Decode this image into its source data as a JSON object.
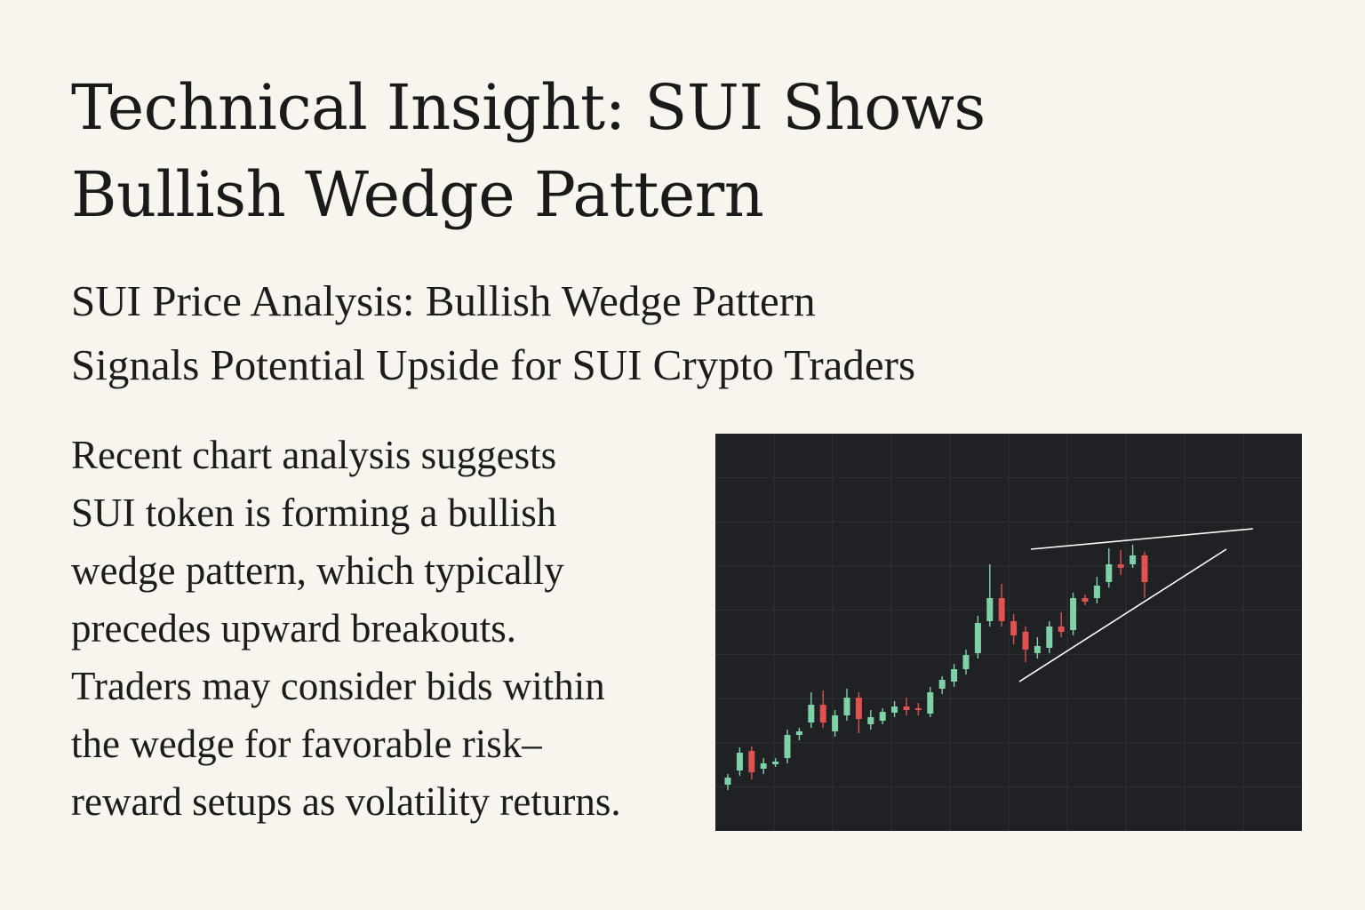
{
  "article": {
    "headline_lines": [
      "Technical Insight: SUI Shows",
      "Bullish Wedge Pattern"
    ],
    "subheadline_lines": [
      "SUI Price Analysis: Bullish Wedge Pattern",
      "Signals Potential Upside for SUI Crypto Traders"
    ],
    "body_lines": [
      "Recent chart analysis suggests",
      "SUI token is forming a bullish",
      "wedge pattern, which typically",
      "precedes upward breakouts.",
      "Traders may consider bids within",
      "the wedge for favorable risk–",
      "reward setups as volatility returns."
    ]
  },
  "colors": {
    "page_background": "#f8f4ee",
    "text": "#1c1c1c",
    "chart_background": "#1f2124",
    "grid": "#2f3236",
    "bullish": "#7fd1a8",
    "bearish": "#e0514f",
    "trendline": "#ffffff"
  },
  "chart_data": {
    "type": "candlestick",
    "grid": true,
    "ylim": [
      0,
      447
    ],
    "candles": [
      {
        "o": 52,
        "c": 60,
        "h": 64,
        "l": 46
      },
      {
        "o": 68,
        "c": 88,
        "h": 94,
        "l": 62
      },
      {
        "o": 90,
        "c": 66,
        "h": 95,
        "l": 58
      },
      {
        "o": 70,
        "c": 76,
        "h": 82,
        "l": 64
      },
      {
        "o": 75,
        "c": 78,
        "h": 82,
        "l": 72
      },
      {
        "o": 82,
        "c": 108,
        "h": 114,
        "l": 76
      },
      {
        "o": 108,
        "c": 112,
        "h": 116,
        "l": 102
      },
      {
        "o": 122,
        "c": 142,
        "h": 156,
        "l": 116
      },
      {
        "o": 142,
        "c": 122,
        "h": 158,
        "l": 116
      },
      {
        "o": 112,
        "c": 130,
        "h": 136,
        "l": 106
      },
      {
        "o": 130,
        "c": 150,
        "h": 160,
        "l": 124
      },
      {
        "o": 150,
        "c": 126,
        "h": 156,
        "l": 110
      },
      {
        "o": 120,
        "c": 128,
        "h": 136,
        "l": 114
      },
      {
        "o": 124,
        "c": 134,
        "h": 138,
        "l": 120
      },
      {
        "o": 133,
        "c": 140,
        "h": 146,
        "l": 128
      },
      {
        "o": 140,
        "c": 136,
        "h": 150,
        "l": 130
      },
      {
        "o": 138,
        "c": 136,
        "h": 144,
        "l": 130
      },
      {
        "o": 132,
        "c": 156,
        "h": 162,
        "l": 128
      },
      {
        "o": 160,
        "c": 170,
        "h": 174,
        "l": 154
      },
      {
        "o": 168,
        "c": 182,
        "h": 188,
        "l": 162
      },
      {
        "o": 182,
        "c": 198,
        "h": 204,
        "l": 176
      },
      {
        "o": 200,
        "c": 234,
        "h": 242,
        "l": 194
      },
      {
        "o": 236,
        "c": 262,
        "h": 300,
        "l": 230
      },
      {
        "o": 262,
        "c": 236,
        "h": 278,
        "l": 230
      },
      {
        "o": 236,
        "c": 220,
        "h": 244,
        "l": 210
      },
      {
        "o": 224,
        "c": 204,
        "h": 230,
        "l": 190
      },
      {
        "o": 200,
        "c": 208,
        "h": 218,
        "l": 194
      },
      {
        "o": 206,
        "c": 230,
        "h": 236,
        "l": 200
      },
      {
        "o": 230,
        "c": 224,
        "h": 246,
        "l": 218
      },
      {
        "o": 226,
        "c": 262,
        "h": 268,
        "l": 220
      },
      {
        "o": 262,
        "c": 258,
        "h": 266,
        "l": 254
      },
      {
        "o": 262,
        "c": 276,
        "h": 286,
        "l": 256
      },
      {
        "o": 280,
        "c": 300,
        "h": 318,
        "l": 274
      },
      {
        "o": 300,
        "c": 296,
        "h": 316,
        "l": 288
      },
      {
        "o": 300,
        "c": 310,
        "h": 322,
        "l": 296
      },
      {
        "o": 310,
        "c": 280,
        "h": 314,
        "l": 262
      }
    ],
    "trendlines": [
      {
        "x1": 355,
        "y1": 317,
        "x2": 605,
        "y2": 340
      },
      {
        "x1": 342,
        "y1": 168,
        "x2": 575,
        "y2": 317
      }
    ]
  }
}
